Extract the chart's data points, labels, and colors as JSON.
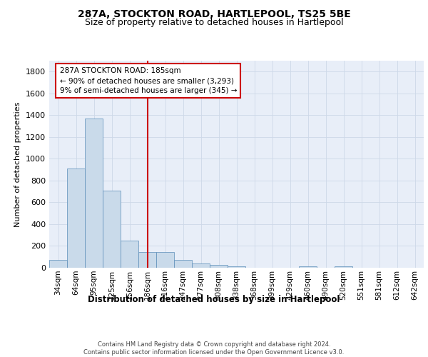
{
  "title1": "287A, STOCKTON ROAD, HARTLEPOOL, TS25 5BE",
  "title2": "Size of property relative to detached houses in Hartlepool",
  "xlabel": "Distribution of detached houses by size in Hartlepool",
  "ylabel": "Number of detached properties",
  "categories": [
    "34sqm",
    "64sqm",
    "95sqm",
    "125sqm",
    "156sqm",
    "186sqm",
    "216sqm",
    "247sqm",
    "277sqm",
    "308sqm",
    "338sqm",
    "368sqm",
    "399sqm",
    "429sqm",
    "460sqm",
    "490sqm",
    "520sqm",
    "551sqm",
    "581sqm",
    "612sqm",
    "642sqm"
  ],
  "values": [
    75,
    910,
    1370,
    710,
    250,
    145,
    145,
    75,
    40,
    28,
    15,
    0,
    0,
    0,
    10,
    0,
    13,
    0,
    0,
    0,
    0
  ],
  "bar_color": "#c9daea",
  "bar_edge_color": "#5b8db8",
  "vline_index": 5,
  "vline_color": "#cc0000",
  "annotation_line1": "287A STOCKTON ROAD: 185sqm",
  "annotation_line2": "← 90% of detached houses are smaller (3,293)",
  "annotation_line3": "9% of semi-detached houses are larger (345) →",
  "ylim_max": 1900,
  "yticks": [
    0,
    200,
    400,
    600,
    800,
    1000,
    1200,
    1400,
    1600,
    1800
  ],
  "grid_color": "#cdd8e8",
  "plot_bg_color": "#e8eef8",
  "footer_line1": "Contains HM Land Registry data © Crown copyright and database right 2024.",
  "footer_line2": "Contains public sector information licensed under the Open Government Licence v3.0."
}
